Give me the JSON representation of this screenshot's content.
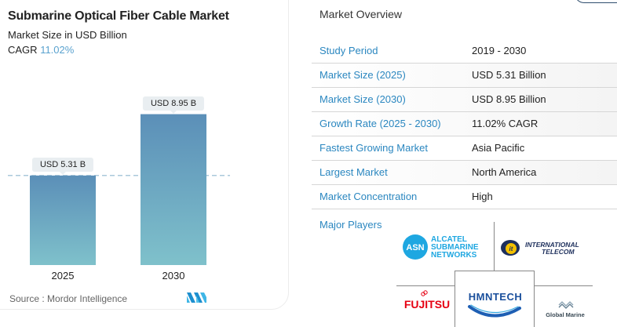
{
  "chart_card": {
    "title": "Submarine Optical Fiber Cable Market",
    "subtitle": "Market Size in USD Billion",
    "cagr_label": "CAGR",
    "cagr_value": "11.02%",
    "source": "Source :  Mordor Intelligence",
    "logo_name": "mordor-intelligence-logo"
  },
  "chart_data": {
    "type": "bar",
    "title": "Submarine Optical Fiber Cable Market",
    "subtitle": "Market Size in USD Billion",
    "xlabel": "",
    "ylabel": "Market Size in USD Billion",
    "categories": [
      "2025",
      "2030"
    ],
    "values": [
      5.31,
      8.95
    ],
    "data_labels": [
      "USD 5.31 B",
      "USD 8.95 B"
    ],
    "ylim": [
      0,
      10
    ],
    "reference_line": {
      "value": 5.31,
      "style": "dashed"
    },
    "grid": false,
    "colors": {
      "bar_top": "#5b8fb8",
      "bar_bottom": "#7fc1cb",
      "dashed_line": "#8fb6cf"
    }
  },
  "overview": {
    "title": "Market Overview",
    "rows": [
      {
        "label": "Study Period",
        "value": "2019 - 2030"
      },
      {
        "label": "Market Size (2025)",
        "value": "USD 5.31 Billion"
      },
      {
        "label": "Market Size (2030)",
        "value": "USD 8.95 Billion"
      },
      {
        "label": "Growth Rate (2025 - 2030)",
        "value": "11.02% CAGR"
      },
      {
        "label": "Fastest Growing Market",
        "value": "Asia Pacific"
      },
      {
        "label": "Largest Market",
        "value": "North America"
      },
      {
        "label": "Market Concentration",
        "value": "High"
      }
    ],
    "major_players_label": "Major Players",
    "players": [
      {
        "name": "Alcatel Submarine Networks",
        "lines": [
          "ALCATEL",
          "SUBMARINE",
          "NETWORKS"
        ],
        "mark": "ASN"
      },
      {
        "name": "International Telecom",
        "lines": [
          "INTERNATIONAL",
          "TELECOM"
        ],
        "mark": "it"
      },
      {
        "name": "Fujitsu",
        "lines": [
          "FUJITSU"
        ]
      },
      {
        "name": "HMN Tech",
        "lines": [
          "HMNTECH"
        ]
      },
      {
        "name": "Global Marine",
        "lines": [
          "Global Marine"
        ]
      }
    ]
  },
  "colors": {
    "accent_blue": "#2b87c0",
    "cagr_blue": "#5aa2cf",
    "asn_blue": "#1ea7e1",
    "fujitsu_red": "#e60012",
    "hmn_blue": "#1a4f9c",
    "it_yellow": "#f3c000"
  }
}
